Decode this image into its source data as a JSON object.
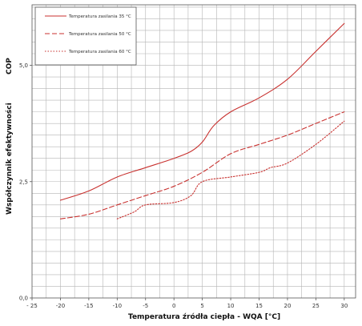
{
  "chart_data": {
    "type": "line",
    "xlabel": "Temperatura źródła ciepła - WQA [°C]",
    "ylabel": "Współczynnik efektywności",
    "ylabel_secondary": "COP",
    "xlim": [
      -25,
      32
    ],
    "ylim": [
      0,
      6.3
    ],
    "x_ticks": [
      -25,
      -20,
      -15,
      -10,
      -5,
      0,
      5,
      10,
      15,
      20,
      25,
      30
    ],
    "x_tick_labels": [
      "- 25",
      "-20",
      "-15",
      "-10",
      "-5",
      "0",
      "5",
      "10",
      "15",
      "20",
      "25",
      "30"
    ],
    "y_ticks": [
      0,
      2.5,
      5.0
    ],
    "y_tick_labels": [
      "0,0",
      "2,5",
      "5,0"
    ],
    "grid": true,
    "legend_position": "top-left",
    "series": [
      {
        "name": "Temperatura zasilania 35 °C",
        "style": "solid",
        "color": "#c8312f",
        "x": [
          -20,
          -15,
          -10,
          -5,
          0,
          3,
          5,
          7,
          10,
          15,
          20,
          25,
          30
        ],
        "y": [
          2.1,
          2.3,
          2.6,
          2.8,
          3.0,
          3.15,
          3.35,
          3.7,
          4.0,
          4.3,
          4.7,
          5.3,
          5.9
        ]
      },
      {
        "name": "Temperatura zasilania 50 °C",
        "style": "dashed",
        "color": "#c8312f",
        "x": [
          -20,
          -15,
          -10,
          -5,
          0,
          5,
          10,
          15,
          20,
          25,
          30
        ],
        "y": [
          1.7,
          1.8,
          2.0,
          2.2,
          2.4,
          2.7,
          3.1,
          3.3,
          3.5,
          3.75,
          4.0
        ]
      },
      {
        "name": "Temperatura zasilania 60 °C",
        "style": "dotted",
        "color": "#c8312f",
        "x": [
          -10,
          -7,
          -5,
          0,
          3,
          5,
          10,
          15,
          17,
          20,
          25,
          30
        ],
        "y": [
          1.7,
          1.85,
          2.0,
          2.05,
          2.2,
          2.5,
          2.6,
          2.7,
          2.8,
          2.9,
          3.3,
          3.8
        ]
      }
    ]
  }
}
